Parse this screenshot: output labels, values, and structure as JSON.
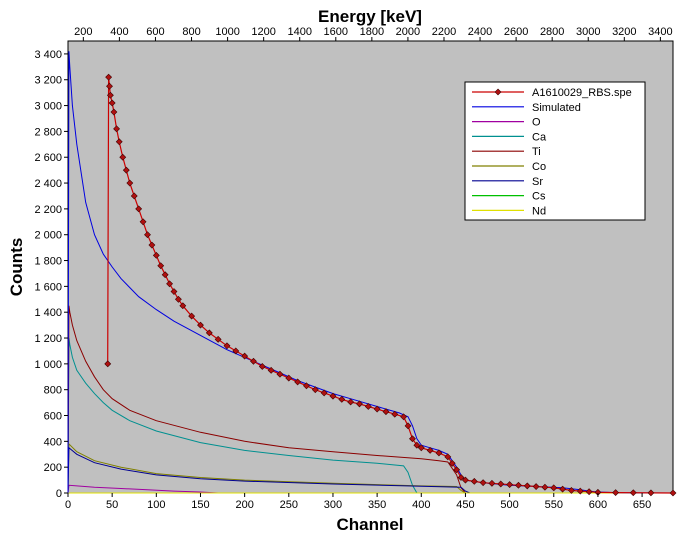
{
  "chart_data": {
    "type": "line",
    "xlabel": "Channel",
    "ylabel": "Counts",
    "top_xlabel": "Energy [keV]",
    "xlim": [
      0,
      685
    ],
    "ylim": [
      0,
      3500
    ],
    "top_xlim": [
      115,
      3470
    ],
    "x_ticks": [
      0,
      50,
      100,
      150,
      200,
      250,
      300,
      350,
      400,
      450,
      500,
      550,
      600,
      650
    ],
    "y_ticks": [
      0,
      200,
      400,
      600,
      800,
      1000,
      1200,
      1400,
      1600,
      1800,
      2000,
      2200,
      2400,
      2600,
      2800,
      3000,
      3200,
      3400
    ],
    "y_tick_labels": [
      "0",
      "200",
      "400",
      "600",
      "800",
      "1 000",
      "1 200",
      "1 400",
      "1 600",
      "1 800",
      "2 000",
      "2 200",
      "2 400",
      "2 600",
      "2 800",
      "3 000",
      "3 200",
      "3 400"
    ],
    "top_ticks": [
      200,
      400,
      600,
      800,
      1000,
      1200,
      1400,
      1600,
      1800,
      2000,
      2200,
      2400,
      2600,
      2800,
      3000,
      3200,
      3400
    ],
    "grid": false,
    "plot_background": "#c0c0c0",
    "legend_position": "top-right",
    "series": [
      {
        "name": "A1610029_RBS.spe",
        "color": "#cc0000",
        "marker": "diamond",
        "marker_color": "#b01010",
        "x": [
          45,
          46,
          47,
          48,
          50,
          52,
          55,
          58,
          62,
          66,
          70,
          75,
          80,
          85,
          90,
          95,
          100,
          105,
          110,
          115,
          120,
          125,
          130,
          140,
          150,
          160,
          170,
          180,
          190,
          200,
          210,
          220,
          230,
          240,
          250,
          260,
          270,
          280,
          290,
          300,
          310,
          320,
          330,
          340,
          350,
          360,
          370,
          380,
          385,
          390,
          395,
          400,
          410,
          420,
          430,
          435,
          440,
          445,
          450,
          460,
          470,
          480,
          490,
          500,
          510,
          520,
          530,
          540,
          550,
          560,
          570,
          580,
          590,
          600,
          620,
          640,
          660,
          685
        ],
        "y": [
          1000,
          3220,
          3150,
          3080,
          3020,
          2950,
          2820,
          2720,
          2600,
          2500,
          2400,
          2300,
          2200,
          2100,
          2000,
          1920,
          1840,
          1760,
          1690,
          1620,
          1560,
          1500,
          1450,
          1370,
          1300,
          1240,
          1190,
          1140,
          1100,
          1060,
          1020,
          980,
          950,
          920,
          890,
          860,
          830,
          800,
          775,
          750,
          725,
          705,
          690,
          670,
          650,
          630,
          610,
          590,
          520,
          420,
          370,
          350,
          330,
          310,
          280,
          230,
          180,
          120,
          100,
          90,
          80,
          75,
          70,
          65,
          60,
          55,
          50,
          45,
          40,
          30,
          20,
          15,
          10,
          5,
          3,
          2,
          1,
          0
        ]
      },
      {
        "name": "Simulated",
        "color": "#0000e0",
        "x": [
          0,
          1,
          2,
          5,
          10,
          20,
          30,
          40,
          50,
          60,
          80,
          100,
          120,
          150,
          180,
          200,
          230,
          260,
          300,
          330,
          360,
          375,
          385,
          390,
          395,
          400,
          410,
          420,
          430,
          440,
          445,
          450,
          470,
          500,
          530,
          560,
          580,
          590,
          600,
          620,
          640,
          685
        ],
        "y": [
          0,
          3420,
          3300,
          3000,
          2700,
          2250,
          2000,
          1850,
          1750,
          1660,
          1520,
          1420,
          1330,
          1220,
          1110,
          1050,
          960,
          870,
          770,
          710,
          650,
          620,
          590,
          520,
          420,
          370,
          350,
          330,
          300,
          200,
          140,
          100,
          80,
          60,
          50,
          40,
          25,
          15,
          8,
          3,
          1,
          0
        ]
      },
      {
        "name": "O",
        "color": "#a000a0",
        "x": [
          0,
          1,
          10,
          30,
          60,
          90,
          120,
          150,
          160,
          170,
          685
        ],
        "y": [
          0,
          60,
          55,
          45,
          35,
          25,
          15,
          8,
          4,
          0,
          0
        ]
      },
      {
        "name": "Ca",
        "color": "#009090",
        "x": [
          0,
          1,
          2,
          5,
          10,
          20,
          30,
          40,
          50,
          70,
          100,
          150,
          200,
          250,
          300,
          350,
          380,
          385,
          390,
          395,
          685
        ],
        "y": [
          0,
          1200,
          1150,
          1050,
          950,
          850,
          770,
          700,
          640,
          560,
          480,
          390,
          330,
          290,
          255,
          230,
          210,
          160,
          60,
          0,
          0
        ]
      },
      {
        "name": "Ti",
        "color": "#8b0000",
        "x": [
          0,
          1,
          2,
          5,
          10,
          20,
          30,
          40,
          50,
          70,
          100,
          150,
          200,
          250,
          300,
          350,
          400,
          420,
          430,
          440,
          445,
          450,
          685
        ],
        "y": [
          0,
          1450,
          1400,
          1300,
          1180,
          1020,
          900,
          800,
          730,
          640,
          560,
          470,
          400,
          350,
          320,
          290,
          265,
          250,
          240,
          140,
          40,
          0,
          0
        ]
      },
      {
        "name": "Co",
        "color": "#808000",
        "x": [
          0,
          1,
          10,
          30,
          60,
          100,
          150,
          200,
          300,
          400,
          440,
          445,
          450,
          685
        ],
        "y": [
          0,
          380,
          320,
          250,
          200,
          150,
          120,
          100,
          75,
          55,
          50,
          20,
          0,
          0
        ]
      },
      {
        "name": "Sr",
        "color": "#000090",
        "x": [
          0,
          1,
          10,
          30,
          60,
          100,
          150,
          200,
          300,
          400,
          445,
          450,
          455,
          685
        ],
        "y": [
          0,
          350,
          300,
          235,
          185,
          140,
          110,
          92,
          70,
          52,
          45,
          15,
          0,
          0
        ]
      },
      {
        "name": "Cs",
        "color": "#00c000",
        "x": [
          0,
          1,
          685
        ],
        "y": [
          0,
          0,
          0
        ]
      },
      {
        "name": "Nd",
        "color": "#e0e000",
        "x": [
          0,
          1,
          685
        ],
        "y": [
          0,
          0,
          0
        ]
      }
    ]
  }
}
